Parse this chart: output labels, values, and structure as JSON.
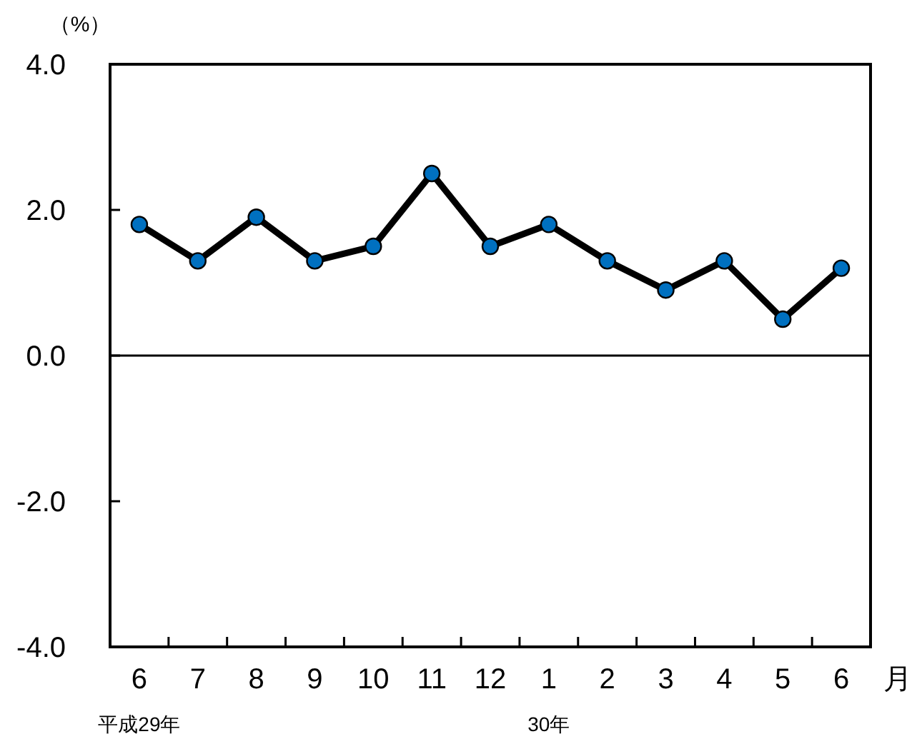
{
  "chart_data": {
    "type": "line",
    "ylabel": "（%）",
    "xlabel": "月",
    "categories": [
      "6\n平成29年",
      "7",
      "8",
      "9",
      "10",
      "11",
      "12",
      "1\n30年",
      "2",
      "3",
      "4",
      "5",
      "6"
    ],
    "series": [
      {
        "color": "#000000",
        "colors": [
          "#0070c0",
          "#0070c0",
          "#0070c0",
          "#0070c0",
          "#0070c0",
          "#0070c0",
          "#0070c0",
          "#0070c0",
          "#0070c0",
          "#0070c0",
          "#0070c0",
          "#0070c0",
          "#0070c0"
        ],
        "values": [
          1.8,
          1.3,
          1.9,
          1.3,
          1.5,
          2.5,
          1.5,
          1.8,
          1.3,
          0.9,
          1.3,
          0.5,
          1.2
        ]
      }
    ],
    "ylim": [
      -4,
      4
    ],
    "yticks": [
      {
        "value": 4,
        "label": "4.0"
      },
      {
        "value": 2,
        "label": "2.0"
      },
      {
        "value": 0,
        "label": "0.0"
      },
      {
        "value": -2,
        "label": "-2.0"
      },
      {
        "value": -4,
        "label": "-4.0"
      }
    ],
    "ref_lines": [
      {
        "axis": "y",
        "value": 0,
        "color": "#000000"
      }
    ],
    "marker": "circle",
    "line_style": "solid",
    "grid": false
  }
}
